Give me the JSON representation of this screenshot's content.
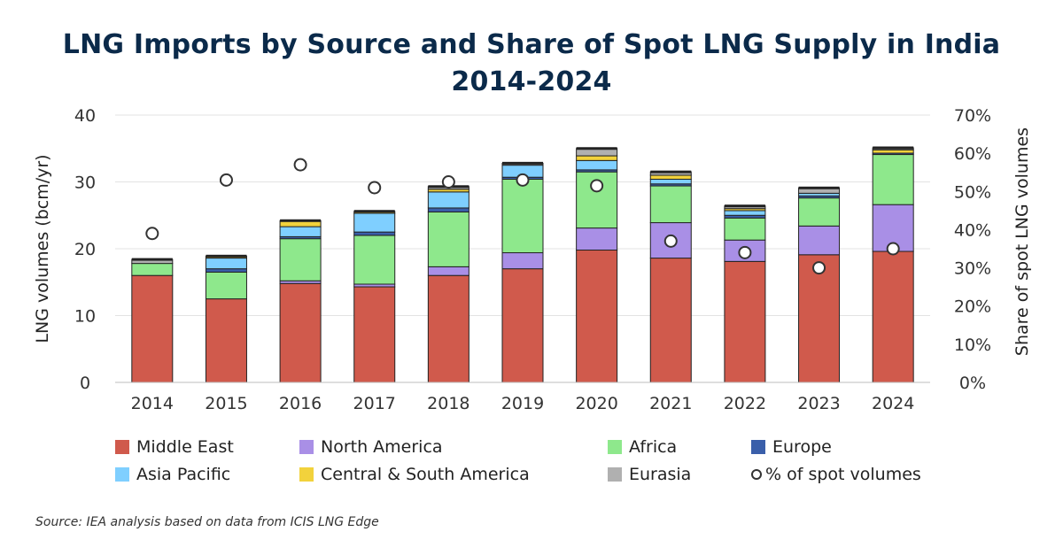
{
  "title_line1": "LNG Imports by Source and Share of Spot LNG Supply in India",
  "title_line2": "2014-2024",
  "source": "Source: IEA analysis based on data from ICIS LNG Edge",
  "chart_data": {
    "type": "bar",
    "stacked": true,
    "categories": [
      "2014",
      "2015",
      "2016",
      "2017",
      "2018",
      "2019",
      "2020",
      "2021",
      "2022",
      "2023",
      "2024"
    ],
    "ylabel_left": "LNG volumes (bcm/yr)",
    "ylabel_right": "Share of spot LNG volumes",
    "ylim_left": [
      0,
      40
    ],
    "yticks_left": [
      "0",
      "10",
      "20",
      "30",
      "40"
    ],
    "ylim_right": [
      0,
      70
    ],
    "yticks_right": [
      "0%",
      "10%",
      "20%",
      "30%",
      "40%",
      "50%",
      "60%",
      "70%"
    ],
    "grid": true,
    "legend_position": "bottom",
    "series": [
      {
        "name": "Middle East",
        "color": "#d05a4c",
        "values": [
          16,
          12.5,
          14.8,
          14.3,
          16,
          17,
          19.8,
          18.6,
          18.1,
          19.1,
          19.6
        ]
      },
      {
        "name": "North America",
        "color": "#a98fe6",
        "values": [
          0,
          0,
          0.4,
          0.4,
          1.3,
          2.4,
          3.3,
          5.3,
          3.2,
          4.3,
          7
        ]
      },
      {
        "name": "Africa",
        "color": "#8ee88c",
        "values": [
          1.8,
          4,
          6.3,
          7.3,
          8.2,
          11,
          8.4,
          5.5,
          3.3,
          4.2,
          7.5
        ]
      },
      {
        "name": "Europe",
        "color": "#3a5faa",
        "values": [
          0,
          0.5,
          0.3,
          0.5,
          0.6,
          0.3,
          0.3,
          0.3,
          0.4,
          0.3,
          0.2
        ]
      },
      {
        "name": "Asia Pacific",
        "color": "#7fcfff",
        "values": [
          0,
          1.6,
          1.5,
          2.8,
          2.4,
          1.8,
          1.4,
          0.7,
          0.7,
          0.4,
          0
        ]
      },
      {
        "name": "Central & South America",
        "color": "#f2d23c",
        "values": [
          0,
          0.3,
          0.9,
          0.3,
          0.4,
          0,
          0.7,
          0.6,
          0.3,
          0,
          0.5
        ]
      },
      {
        "name": "Eurasia",
        "color": "#b0b0b0",
        "values": [
          0.6,
          0,
          0,
          0,
          0.4,
          0.3,
          1.1,
          0.5,
          0.4,
          0.8,
          0.3
        ]
      }
    ],
    "spot_series": {
      "name": "% of spot volumes",
      "values": [
        39,
        53,
        57,
        51,
        52.5,
        53,
        51.5,
        37,
        34,
        30,
        35
      ]
    }
  }
}
